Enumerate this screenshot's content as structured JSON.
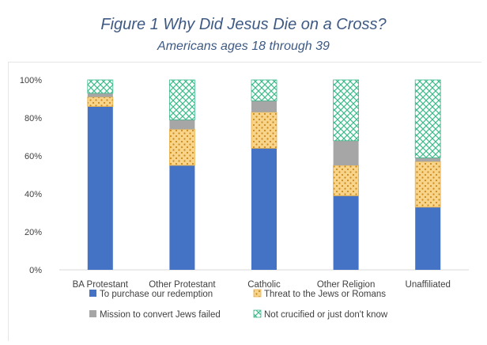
{
  "chart_data": {
    "type": "bar",
    "stacked": true,
    "title": "Figure 1 Why Did Jesus Die on a Cross?",
    "subtitle": "Americans ages 18 through 39",
    "categories": [
      "BA Protestant",
      "Other Protestant",
      "Catholic",
      "Other Religion",
      "Unaffiliated"
    ],
    "series": [
      {
        "name": "To purchase our redemption",
        "values": [
          86,
          55,
          64,
          39,
          33
        ],
        "color": "#4472c4",
        "pattern": "solid"
      },
      {
        "name": "Threat to the Jews or Romans",
        "values": [
          5,
          19,
          19,
          16,
          24
        ],
        "color": "#f5c66b",
        "pattern": "dots"
      },
      {
        "name": "Mission to convert Jews failed",
        "values": [
          2,
          5,
          6,
          13,
          2
        ],
        "color": "#a6a6a6",
        "pattern": "solid"
      },
      {
        "name": "Not crucified or just don't know",
        "values": [
          7,
          21,
          11,
          32,
          41
        ],
        "color": "#3dba8c",
        "pattern": "crosshatch"
      }
    ],
    "ylim": [
      0,
      100
    ],
    "yticks": [
      "0%",
      "20%",
      "40%",
      "60%",
      "80%",
      "100%"
    ],
    "legend_position": "bottom"
  }
}
